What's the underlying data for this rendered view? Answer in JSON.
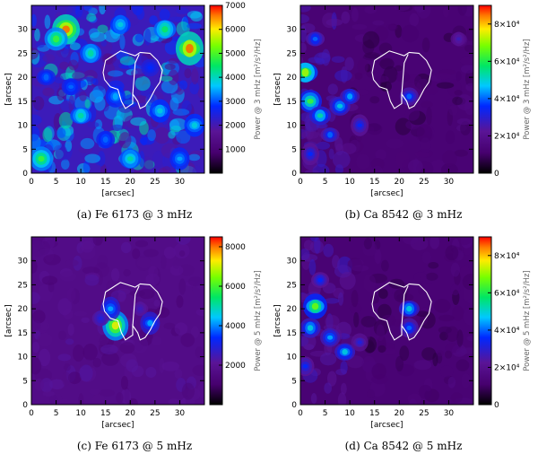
{
  "chart_data": [
    {
      "type": "heatmap",
      "panel_label": "(a)",
      "caption": "Fe 6173 @ 3 mHz",
      "xlabel": "[arcsec]",
      "ylabel": "[arcsec]",
      "xlim": [
        0,
        35
      ],
      "ylim": [
        0,
        35
      ],
      "x_ticks": [
        "0",
        "5",
        "10",
        "15",
        "20",
        "25",
        "30"
      ],
      "y_ticks": [
        "0",
        "5",
        "10",
        "15",
        "20",
        "25",
        "30"
      ],
      "colorbar": {
        "label": "Power @ 3 mHz [m²/s²/Hz]",
        "range": [
          0,
          7000
        ],
        "ticks": [
          "1000",
          "2000",
          "3000",
          "4000",
          "5000",
          "6000",
          "7000"
        ]
      },
      "background_style": "noisy",
      "hotspots": [
        {
          "x": 7,
          "y": 30,
          "level": 0.95
        },
        {
          "x": 5,
          "y": 28,
          "level": 0.7
        },
        {
          "x": 32,
          "y": 26,
          "level": 0.95
        },
        {
          "x": 27,
          "y": 30,
          "level": 0.65
        },
        {
          "x": 12,
          "y": 25,
          "level": 0.6
        },
        {
          "x": 18,
          "y": 31,
          "level": 0.55
        },
        {
          "x": 3,
          "y": 20,
          "level": 0.45
        },
        {
          "x": 10,
          "y": 12,
          "level": 0.6
        },
        {
          "x": 2,
          "y": 3,
          "level": 0.7
        },
        {
          "x": 20,
          "y": 3,
          "level": 0.6
        },
        {
          "x": 26,
          "y": 13,
          "level": 0.55
        },
        {
          "x": 33,
          "y": 10,
          "level": 0.55
        },
        {
          "x": 15,
          "y": 7,
          "level": 0.45
        },
        {
          "x": 30,
          "y": 3,
          "level": 0.5
        },
        {
          "x": 24,
          "y": 22,
          "level": 0.4
        },
        {
          "x": 8,
          "y": 18,
          "level": 0.45
        },
        {
          "x": 17,
          "y": 16,
          "level": 0.5
        }
      ]
    },
    {
      "type": "heatmap",
      "panel_label": "(b)",
      "caption": "Ca 8542 @ 3 mHz",
      "xlabel": "[arcsec]",
      "ylabel": "[arcsec]",
      "xlim": [
        0,
        35
      ],
      "ylim": [
        0,
        35
      ],
      "x_ticks": [
        "0",
        "5",
        "10",
        "15",
        "20",
        "25",
        "30"
      ],
      "y_ticks": [
        "0",
        "5",
        "10",
        "15",
        "20",
        "25",
        "30"
      ],
      "colorbar": {
        "label": "Power @ 3 mHz [m²/s²/Hz]",
        "range": [
          0,
          90000
        ],
        "ticks": [
          "0",
          "2×10⁴",
          "4×10⁴",
          "6×10⁴",
          "8×10⁴"
        ]
      },
      "background_style": "dark-rays",
      "hotspots": [
        {
          "x": 1,
          "y": 21,
          "level": 0.8
        },
        {
          "x": 2,
          "y": 15,
          "level": 0.7
        },
        {
          "x": 4,
          "y": 12,
          "level": 0.6
        },
        {
          "x": 8,
          "y": 14,
          "level": 0.55
        },
        {
          "x": 3,
          "y": 28,
          "level": 0.45
        },
        {
          "x": 10,
          "y": 16,
          "level": 0.5
        },
        {
          "x": 6,
          "y": 8,
          "level": 0.45
        },
        {
          "x": 12,
          "y": 10,
          "level": 0.4
        },
        {
          "x": 22,
          "y": 16,
          "level": 0.45
        },
        {
          "x": 2,
          "y": 4,
          "level": 0.4
        },
        {
          "x": 32,
          "y": 28,
          "level": 0.3
        }
      ]
    },
    {
      "type": "heatmap",
      "panel_label": "(c)",
      "caption": "Fe 6173 @ 5 mHz",
      "xlabel": "[arcsec]",
      "ylabel": "[arcsec]",
      "xlim": [
        0,
        35
      ],
      "ylim": [
        0,
        35
      ],
      "x_ticks": [
        "0",
        "5",
        "10",
        "15",
        "20",
        "25",
        "30"
      ],
      "y_ticks": [
        "0",
        "5",
        "10",
        "15",
        "20",
        "25",
        "30"
      ],
      "colorbar": {
        "label": "Power @ 5 mHz [m²/s²/Hz]",
        "range": [
          0,
          8500
        ],
        "ticks": [
          "2000",
          "4000",
          "6000",
          "8000"
        ]
      },
      "background_style": "faint",
      "hotspots": [
        {
          "x": 17,
          "y": 16.5,
          "level": 0.85
        },
        {
          "x": 16,
          "y": 20,
          "level": 0.5
        },
        {
          "x": 24,
          "y": 17,
          "level": 0.5
        },
        {
          "x": 14,
          "y": 18,
          "level": 0.35
        },
        {
          "x": 22,
          "y": 20,
          "level": 0.3
        }
      ]
    },
    {
      "type": "heatmap",
      "panel_label": "(d)",
      "caption": "Ca 8542 @ 5 mHz",
      "xlabel": "[arcsec]",
      "ylabel": "[arcsec]",
      "xlim": [
        0,
        35
      ],
      "ylim": [
        0,
        35
      ],
      "x_ticks": [
        "0",
        "5",
        "10",
        "15",
        "20",
        "25",
        "30"
      ],
      "y_ticks": [
        "0",
        "5",
        "10",
        "15",
        "20",
        "25",
        "30"
      ],
      "colorbar": {
        "label": "Power @ 5 mHz [m²/s²/Hz]",
        "range": [
          0,
          90000
        ],
        "ticks": [
          "0",
          "2×10⁴",
          "4×10⁴",
          "6×10⁴",
          "8×10⁴"
        ]
      },
      "background_style": "dark-rays",
      "hotspots": [
        {
          "x": 3,
          "y": 20.5,
          "level": 0.75
        },
        {
          "x": 2,
          "y": 16,
          "level": 0.55
        },
        {
          "x": 6,
          "y": 14,
          "level": 0.5
        },
        {
          "x": 9,
          "y": 11,
          "level": 0.55
        },
        {
          "x": 22,
          "y": 20,
          "level": 0.55
        },
        {
          "x": 22,
          "y": 16,
          "level": 0.45
        },
        {
          "x": 1,
          "y": 8,
          "level": 0.4
        },
        {
          "x": 4,
          "y": 26,
          "level": 0.4
        },
        {
          "x": 12,
          "y": 13,
          "level": 0.35
        }
      ]
    }
  ]
}
